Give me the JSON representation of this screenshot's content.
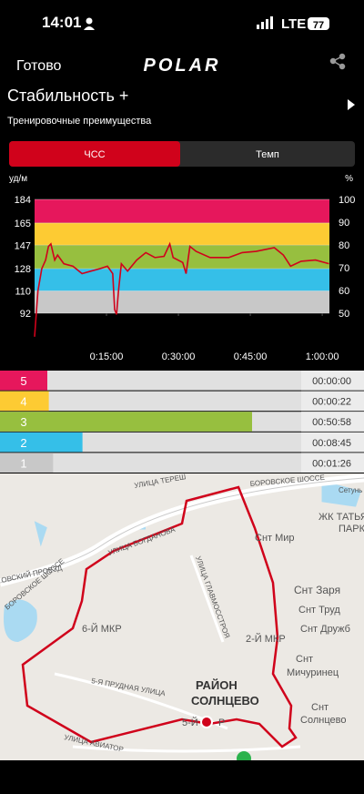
{
  "status": {
    "time": "14:01",
    "network": "LTE",
    "battery": "77"
  },
  "header": {
    "done": "Готово",
    "logo": "POLAR"
  },
  "title": "Стабильность +",
  "subtitle": "Тренировочные преимущества",
  "tabs": [
    "ЧСС",
    "Темп"
  ],
  "chart_data": {
    "type": "line",
    "ylabel": "уд/м",
    "y2label": "%",
    "x": [
      0,
      0.7,
      1.5,
      2.3,
      2.9,
      3.4,
      4.2,
      4.8,
      6.1,
      8,
      9.9,
      11.7,
      13.6,
      15.2,
      16.3,
      16.7,
      17.1,
      17.5,
      18.1,
      19.4,
      21.3,
      23.2,
      25.1,
      27,
      28.2,
      28.9,
      30.9,
      31.6,
      32.4,
      33.7,
      36.6,
      40.5,
      43.3,
      46.2,
      50,
      51.9,
      53.4,
      55.6,
      58.6,
      61.4
    ],
    "series": [
      {
        "color": "#d0021b",
        "values": [
          73,
          110,
          128,
          135,
          146,
          148,
          135,
          139,
          132,
          130,
          124,
          126,
          128,
          130,
          124,
          95,
          91,
          110,
          132,
          126,
          135,
          141,
          137,
          138,
          148,
          137,
          133,
          124,
          146,
          142,
          137,
          137,
          141,
          142,
          145,
          139,
          130,
          134,
          135,
          132
        ]
      }
    ],
    "xlim": [
      0,
      61.5
    ],
    "ylim": [
      92,
      184
    ],
    "y2lim": [
      50,
      100
    ],
    "xticks": [
      {
        "value": 15,
        "label": "0:15:00"
      },
      {
        "value": 30,
        "label": "0:30:00"
      },
      {
        "value": 45,
        "label": "0:45:00"
      },
      {
        "value": 60,
        "label": "1:00:00"
      }
    ],
    "yticks": [
      92,
      110,
      128,
      147,
      165,
      184
    ],
    "y2ticks": [
      50,
      60,
      70,
      80,
      90,
      100
    ],
    "zone_colors": [
      "#e6175c",
      "#fdcb33",
      "#97bf3f",
      "#35bfe8",
      "#c8c8c8"
    ]
  },
  "zones": [
    {
      "label": "5",
      "time": "00:00:00",
      "color": "#e6175c"
    },
    {
      "label": "4",
      "time": "00:00:22",
      "color": "#fdcb33"
    },
    {
      "label": "3",
      "time": "00:50:58",
      "color": "#97bf3f"
    },
    {
      "label": "2",
      "time": "00:08:45",
      "color": "#35bfe8"
    },
    {
      "label": "1",
      "time": "00:01:26",
      "color": "#c8c8c8"
    }
  ],
  "map": {
    "labels": [
      "УЛИЦА ТЕРЕШ",
      "БОРОВСКОЕ ШОССЕ",
      "Сетунь",
      "ЖК ТАТЬЯ",
      "ПАРК",
      "Снт Мир",
      "УЛИЦА БОГДАНОВА",
      "ОВСКИЙ ПРОЕЗД",
      "БОРОВСКОЕ ШОССЕ",
      "УЛИЦА ГЛАВМОССТРОЯ",
      "Снт Заря",
      "Снт Труд",
      "Снт Дружб",
      "6-Й МКР",
      "2-Й МКР",
      "Снт",
      "Мичуринец",
      "РАЙОН",
      "СОЛНЦЕВО",
      "5-Я ПРУДНАЯ УЛИЦА",
      "Снт",
      "Солнцево",
      "5-Й",
      "Р",
      "УЛИЦА АВИАТОР"
    ]
  }
}
